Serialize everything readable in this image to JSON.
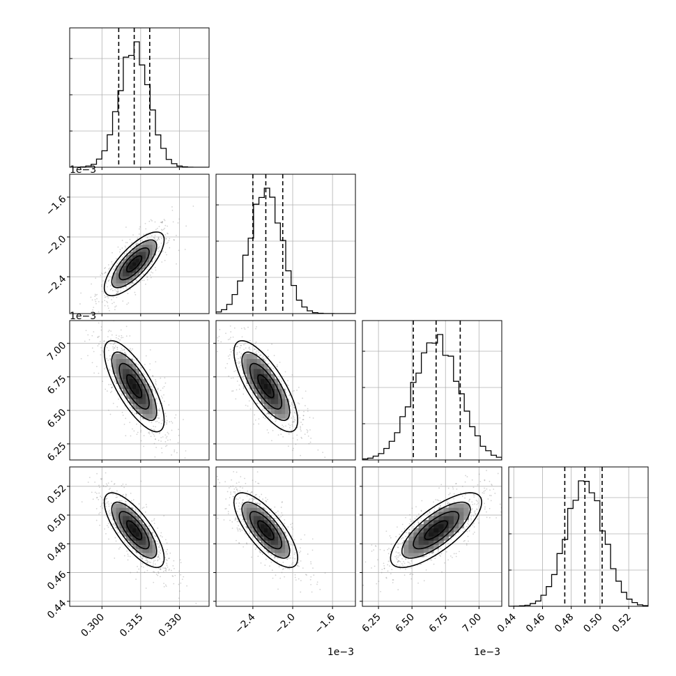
{
  "chart_data": {
    "type": "corner",
    "parameters": [
      {
        "range": [
          0.2875,
          0.3415
        ],
        "median": 0.3125,
        "q16": 0.3065,
        "q84": 0.3185,
        "sd": 0.0058,
        "ticks": [
          0.3,
          0.315,
          0.33
        ],
        "tick_labels": [
          "0.300",
          "0.315",
          "0.330"
        ],
        "offset_label": ""
      },
      {
        "range": [
          -2.77,
          -1.37
        ],
        "median": -2.27,
        "q16": -2.4,
        "q84": -2.1,
        "sd": 0.16,
        "ticks": [
          -2.4,
          -2.0,
          -1.6
        ],
        "tick_labels": [
          "−2.4",
          "−2.0",
          "−1.6"
        ],
        "offset_label": "1e−3"
      },
      {
        "range": [
          6.13,
          7.17
        ],
        "median": 6.68,
        "q16": 6.51,
        "q84": 6.86,
        "sd": 0.17,
        "ticks": [
          6.25,
          6.5,
          6.75,
          7.0
        ],
        "tick_labels": [
          "6.25",
          "6.50",
          "6.75",
          "7.00"
        ],
        "offset_label": "1e−3"
      },
      {
        "range": [
          0.4365,
          0.5335
        ],
        "median": 0.4895,
        "q16": 0.4755,
        "q84": 0.5015,
        "sd": 0.013,
        "ticks": [
          0.44,
          0.46,
          0.48,
          0.5,
          0.52
        ],
        "tick_labels": [
          "0.44",
          "0.46",
          "0.48",
          "0.50",
          "0.52"
        ],
        "offset_label": ""
      }
    ],
    "correlations": [
      [
        1.0,
        0.75,
        -0.75,
        -0.75
      ],
      [
        0.75,
        1.0,
        -0.75,
        -0.75
      ],
      [
        -0.75,
        -0.75,
        1.0,
        0.75
      ],
      [
        -0.75,
        -0.75,
        0.75,
        1.0
      ]
    ],
    "contour_levels_sigma": [
      0.5,
      1.0,
      1.5,
      2.0
    ],
    "grid": true,
    "colors": {
      "line": "#000000",
      "points": "#7f7f7f",
      "grid": "#b0b0b0"
    }
  }
}
